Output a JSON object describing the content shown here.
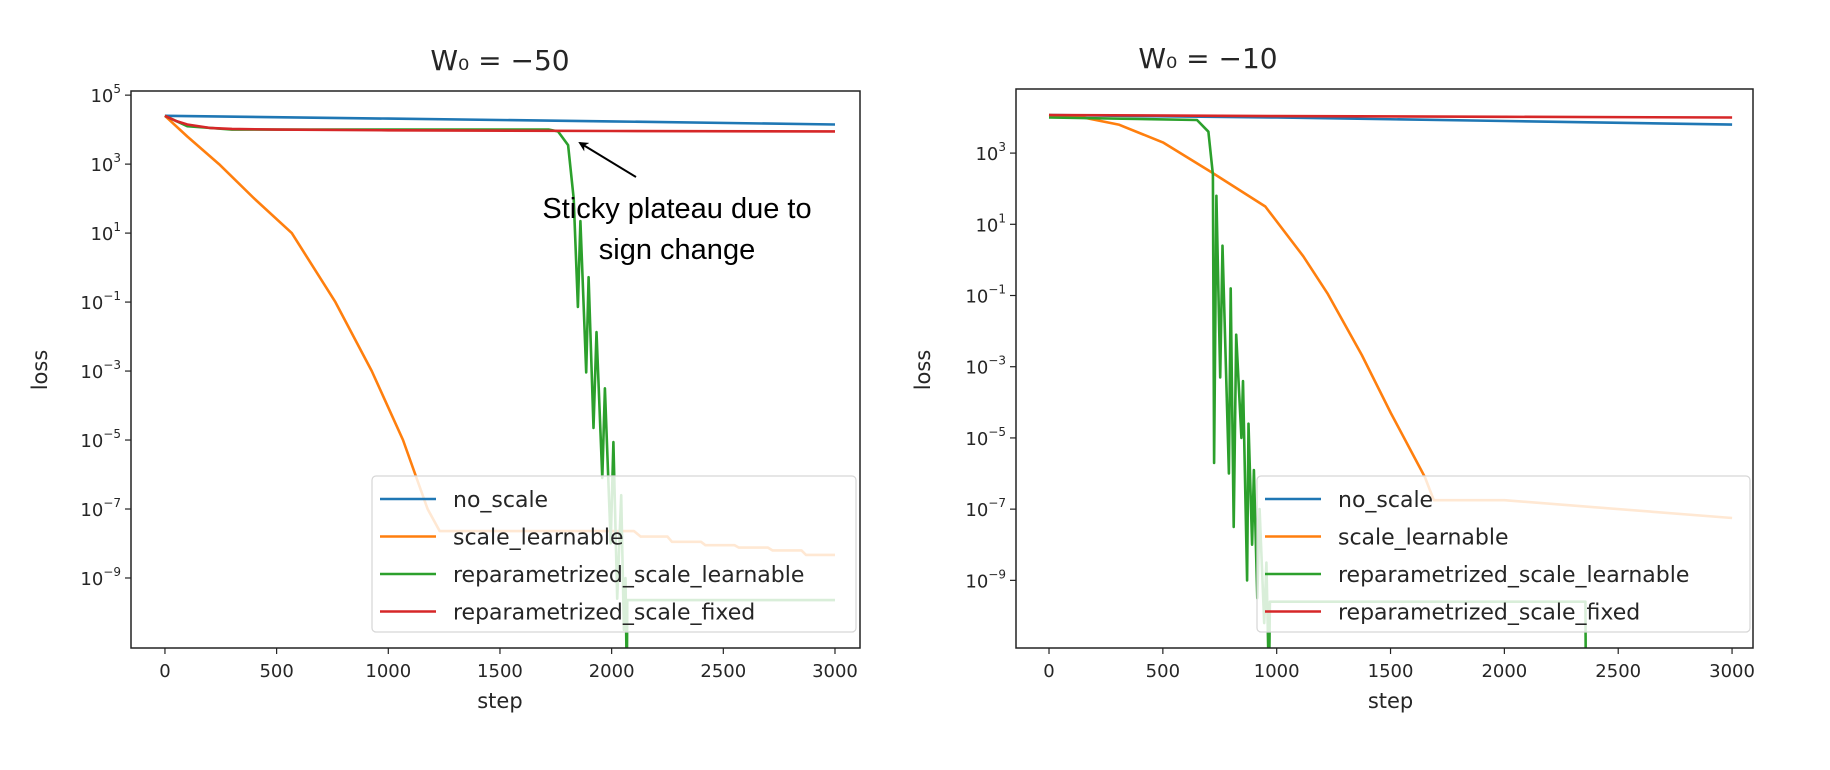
{
  "chart_data": [
    {
      "type": "line",
      "title": "W₀ = −50",
      "xlabel": "step",
      "ylabel": "loss",
      "yscale": "log",
      "xlim": [
        -152,
        3112
      ],
      "ylim_log10": [
        -11.03,
        5.12
      ],
      "xticks": [
        0,
        500,
        1000,
        1500,
        2000,
        2500,
        3000
      ],
      "yticks_exponent": [
        "5",
        "3",
        "1",
        "−1",
        "−3",
        "−5",
        "−7",
        "−9"
      ],
      "ytick_base": "10",
      "legend_placement": "lower-right",
      "annotation": {
        "lines": [
          "Sticky plateau due to",
          "sign change"
        ],
        "arrow_target_step": 1850,
        "arrow_target_log10_loss": 3.64
      },
      "series": [
        {
          "name": "no_scale",
          "color": "#1f77b4",
          "x": [
            0,
            1000,
            2000,
            3000
          ],
          "log10_y": [
            4.4,
            4.32,
            4.24,
            4.15
          ]
        },
        {
          "name": "scale_learnable",
          "color": "#ff7f0e",
          "x": [
            0,
            100,
            242,
            400,
            568,
            763,
            926,
            1066,
            1176,
            1230,
            2100,
            2130,
            2250,
            2270,
            2400,
            2420,
            2550,
            2570,
            2700,
            2720,
            2850,
            2870,
            3000
          ],
          "log10_y": [
            4.4,
            3.8,
            3.0,
            2.0,
            1.0,
            -1.0,
            -3.0,
            -5.0,
            -7.0,
            -7.64,
            -7.64,
            -7.8,
            -7.8,
            -7.95,
            -7.95,
            -8.05,
            -8.05,
            -8.12,
            -8.12,
            -8.2,
            -8.2,
            -8.33,
            -8.33
          ]
        },
        {
          "name": "reparametrized_scale_learnable",
          "color": "#2ca02c",
          "x": [
            0,
            100,
            300,
            1720,
            1760,
            1805,
            1830,
            1849,
            1860,
            1886,
            1897,
            1919,
            1932,
            1958,
            1970,
            1996,
            2008,
            2025,
            2043,
            2055,
            2062,
            2068,
            2070,
            3000
          ],
          "log10_y": [
            4.4,
            4.1,
            4.0,
            4.0,
            3.95,
            3.55,
            2.0,
            -1.14,
            1.35,
            -3.04,
            -0.28,
            -4.65,
            -1.87,
            -6.1,
            -3.5,
            -8.0,
            -5.06,
            -9.6,
            -6.6,
            -10.5,
            -9.0,
            -12,
            -9.64,
            -9.64
          ]
        },
        {
          "name": "reparametrized_scale_fixed",
          "color": "#d62728",
          "x": [
            0,
            50,
            100,
            200,
            300,
            500,
            1000,
            2000,
            3000
          ],
          "log10_y": [
            4.4,
            4.25,
            4.15,
            4.05,
            4.02,
            4.0,
            3.98,
            3.96,
            3.95
          ]
        }
      ]
    },
    {
      "type": "line",
      "title": "W₀ = −10",
      "xlabel": "step",
      "ylabel": "loss",
      "yscale": "log",
      "xlim": [
        -145,
        3092
      ],
      "ylim_log10": [
        -10.9,
        4.8
      ],
      "xticks": [
        0,
        500,
        1000,
        1500,
        2000,
        2500,
        3000
      ],
      "yticks_exponent": [
        "3",
        "1",
        "−1",
        "−3",
        "−5",
        "−7",
        "−9"
      ],
      "ytick_base": "10",
      "legend_placement": "lower-right",
      "series": [
        {
          "name": "no_scale",
          "color": "#1f77b4",
          "x": [
            0,
            1000,
            2000,
            3000
          ],
          "log10_y": [
            4.07,
            4.0,
            3.9,
            3.8
          ]
        },
        {
          "name": "scale_learnable",
          "color": "#ff7f0e",
          "x": [
            0,
            150,
            306,
            500,
            712,
            950,
            1117,
            1225,
            1374,
            1501,
            1651,
            1690,
            2000,
            3000
          ],
          "log10_y": [
            4.07,
            4.0,
            3.8,
            3.3,
            2.47,
            1.5,
            0.1,
            -0.96,
            -2.67,
            -4.3,
            -6.1,
            -6.75,
            -6.75,
            -7.25
          ]
        },
        {
          "name": "reparametrized_scale_learnable",
          "color": "#2ca02c",
          "x": [
            0,
            650,
            700,
            720,
            725,
            735,
            752,
            762,
            790,
            798,
            811,
            822,
            845,
            852,
            870,
            876,
            892,
            900,
            915,
            925,
            945,
            955,
            966,
            970,
            2356,
            2358
          ],
          "log10_y": [
            4.0,
            3.93,
            3.6,
            2.4,
            -5.7,
            1.8,
            -3.3,
            0.4,
            -6.0,
            -0.8,
            -7.5,
            -2.1,
            -5.0,
            -3.4,
            -9.0,
            -4.6,
            -8.0,
            -5.9,
            -9.5,
            -7.0,
            -10.2,
            -8.5,
            -12,
            -9.6,
            -9.6,
            -12
          ]
        },
        {
          "name": "reparametrized_scale_fixed",
          "color": "#d62728",
          "x": [
            0,
            1000,
            2000,
            3000
          ],
          "log10_y": [
            4.07,
            4.04,
            4.02,
            4.0
          ]
        }
      ]
    }
  ]
}
